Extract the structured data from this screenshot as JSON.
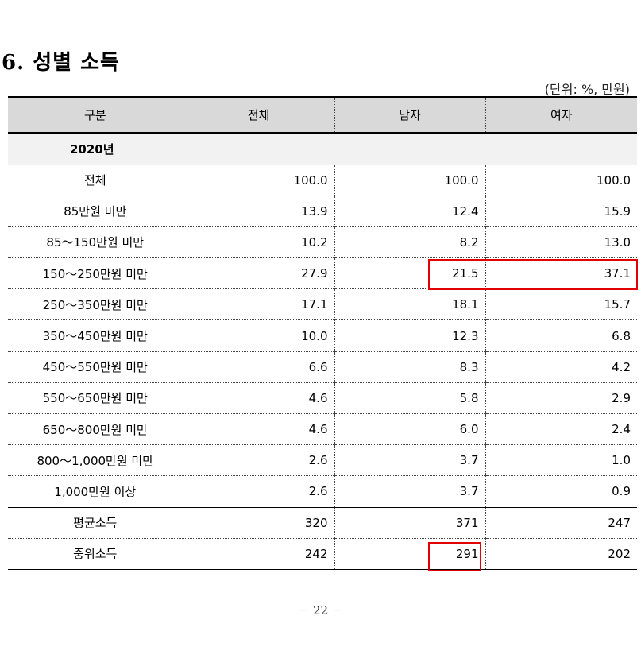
{
  "title": "6. 성별 소득",
  "unit_note": "(단위: %, 만원)",
  "table": {
    "headers": [
      "구분",
      "전체",
      "남자",
      "여자"
    ],
    "year_label": "2020년",
    "rows": [
      {
        "label": "전체",
        "total": "100.0",
        "male": "100.0",
        "female": "100.0"
      },
      {
        "label": "85만원 미만",
        "total": "13.9",
        "male": "12.4",
        "female": "15.9"
      },
      {
        "label": "85～150만원 미만",
        "total": "10.2",
        "male": "8.2",
        "female": "13.0"
      },
      {
        "label": "150～250만원 미만",
        "total": "27.9",
        "male": "21.5",
        "female": "37.1"
      },
      {
        "label": "250～350만원 미만",
        "total": "17.1",
        "male": "18.1",
        "female": "15.7"
      },
      {
        "label": "350～450만원 미만",
        "total": "10.0",
        "male": "12.3",
        "female": "6.8"
      },
      {
        "label": "450～550만원 미만",
        "total": "6.6",
        "male": "8.3",
        "female": "4.2"
      },
      {
        "label": "550～650만원 미만",
        "total": "4.6",
        "male": "5.8",
        "female": "2.9"
      },
      {
        "label": "650～800만원 미만",
        "total": "4.6",
        "male": "6.0",
        "female": "2.4"
      },
      {
        "label": "800～1,000만원 미만",
        "total": "2.6",
        "male": "3.7",
        "female": "1.0"
      },
      {
        "label": "1,000만원 이상",
        "total": "2.6",
        "male": "3.7",
        "female": "0.9"
      },
      {
        "label": "평균소득",
        "total": "320",
        "male": "371",
        "female": "247"
      },
      {
        "label": "중위소득",
        "total": "242",
        "male": "291",
        "female": "202"
      }
    ]
  },
  "highlight_color": "#e00000",
  "page_number": "－ 22 －"
}
